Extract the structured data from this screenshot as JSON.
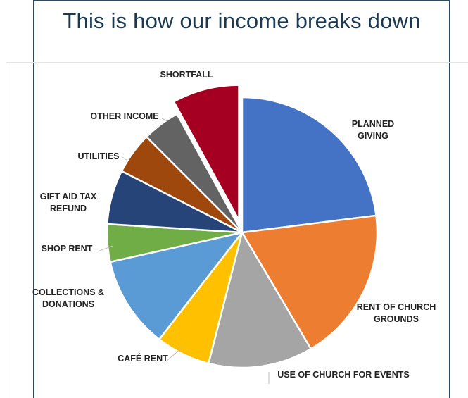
{
  "page": {
    "title": "This is how our income breaks down"
  },
  "chart_data": {
    "type": "pie",
    "title": "",
    "legend": "none",
    "exploded_slice": "SHORTFALL",
    "slices": [
      {
        "label": "PLANNED GIVING",
        "lines": [
          "PLANNED",
          "GIVING"
        ],
        "value": 23,
        "color": "#4472c4"
      },
      {
        "label": "RENT OF CHURCH GROUNDS",
        "lines": [
          "RENT OF CHURCH",
          "GROUNDS"
        ],
        "value": 18.5,
        "color": "#ed7d31"
      },
      {
        "label": "USE OF CHURCH FOR EVENTS",
        "lines": [
          "USE OF CHURCH FOR EVENTS"
        ],
        "value": 12.5,
        "color": "#a5a5a5"
      },
      {
        "label": "CAFÉ RENT",
        "lines": [
          "CAFÉ RENT"
        ],
        "value": 6.5,
        "color": "#ffc000"
      },
      {
        "label": "COLLECTIONS & DONATIONS",
        "lines": [
          "COLLECTIONS &",
          "DONATIONS"
        ],
        "value": 11,
        "color": "#5b9bd5"
      },
      {
        "label": "SHOP RENT",
        "lines": [
          "SHOP RENT"
        ],
        "value": 4.5,
        "color": "#70ad47"
      },
      {
        "label": "GIFT AID TAX REFUND",
        "lines": [
          "GIFT AID TAX",
          "REFUND"
        ],
        "value": 6.5,
        "color": "#264478"
      },
      {
        "label": "UTILITIES",
        "lines": [
          "UTILITIES"
        ],
        "value": 5,
        "color": "#9e480e"
      },
      {
        "label": "OTHER INCOME",
        "lines": [
          "OTHER INCOME"
        ],
        "value": 4.5,
        "color": "#636363"
      },
      {
        "label": "SHORTFALL",
        "lines": [
          "SHORTFALL"
        ],
        "value": 8,
        "color": "#a50021"
      }
    ]
  }
}
